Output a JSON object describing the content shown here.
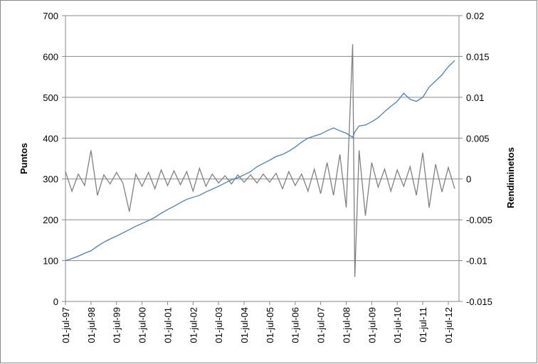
{
  "chart_data": {
    "type": "line",
    "x": [
      "1997-07-01",
      "1997-10-01",
      "1998-01-01",
      "1998-04-01",
      "1998-07-01",
      "1998-10-01",
      "1999-01-01",
      "1999-04-01",
      "1999-07-01",
      "1999-10-01",
      "2000-01-01",
      "2000-04-01",
      "2000-07-01",
      "2000-10-01",
      "2001-01-01",
      "2001-04-01",
      "2001-07-01",
      "2001-10-01",
      "2002-01-01",
      "2002-04-01",
      "2002-07-01",
      "2002-10-01",
      "2003-01-01",
      "2003-04-01",
      "2003-07-01",
      "2003-10-01",
      "2004-01-01",
      "2004-04-01",
      "2004-07-01",
      "2004-10-01",
      "2005-01-01",
      "2005-04-01",
      "2005-07-01",
      "2005-10-01",
      "2006-01-01",
      "2006-04-01",
      "2006-07-01",
      "2006-10-01",
      "2007-01-01",
      "2007-04-01",
      "2007-07-01",
      "2007-10-01",
      "2008-01-01",
      "2008-04-01",
      "2008-07-01",
      "2008-10-01",
      "2008-11-01",
      "2009-01-01",
      "2009-04-01",
      "2009-07-01",
      "2009-10-01",
      "2010-01-01",
      "2010-04-01",
      "2010-07-01",
      "2010-10-01",
      "2011-01-01",
      "2011-04-01",
      "2011-07-01",
      "2011-10-01",
      "2012-01-01",
      "2012-04-01",
      "2012-07-01",
      "2012-10-01"
    ],
    "series": [
      {
        "name": "Puntos",
        "color": "#4a7ebb",
        "axis": "y",
        "values": [
          100,
          105,
          111,
          118,
          124,
          135,
          145,
          153,
          160,
          168,
          176,
          184,
          191,
          198,
          206,
          216,
          225,
          233,
          242,
          250,
          255,
          260,
          268,
          275,
          282,
          290,
          298,
          303,
          310,
          318,
          330,
          338,
          346,
          355,
          360,
          368,
          378,
          390,
          400,
          405,
          410,
          418,
          425,
          418,
          412,
          402,
          415,
          430,
          432,
          440,
          450,
          465,
          478,
          490,
          510,
          495,
          490,
          500,
          525,
          540,
          555,
          575,
          590
        ]
      },
      {
        "name": "Rendiminetos",
        "color": "#808080",
        "axis": "y2",
        "values": [
          0.0009,
          -0.0015,
          0.0006,
          -0.0008,
          0.0035,
          -0.002,
          0.0005,
          -0.0006,
          0.0008,
          -0.0005,
          -0.004,
          0.0006,
          -0.0009,
          0.0008,
          -0.0012,
          0.0011,
          -0.0008,
          0.001,
          -0.0007,
          0.0009,
          -0.0015,
          0.0013,
          -0.0009,
          0.0006,
          -0.0005,
          0.0004,
          -0.0006,
          0.0005,
          -0.0004,
          0.0005,
          -0.0005,
          0.0006,
          -0.0004,
          0.0007,
          -0.0012,
          0.0009,
          -0.0008,
          0.0006,
          -0.0015,
          0.0012,
          -0.0018,
          0.002,
          -0.002,
          0.003,
          -0.0035,
          0.0165,
          -0.012,
          0.0035,
          -0.0045,
          0.002,
          -0.001,
          0.0012,
          -0.0015,
          0.0011,
          -0.0009,
          0.0015,
          -0.002,
          0.0032,
          -0.0035,
          0.0018,
          -0.0016,
          0.0014,
          -0.0012
        ]
      }
    ],
    "y_label": "Puntos",
    "y2_label": "Rendiminetos",
    "xlim": [
      "1997-07-01",
      "2012-12-01"
    ],
    "xticks": [
      {
        "value": "1997-07-01",
        "label": "01-jul-97"
      },
      {
        "value": "1998-07-01",
        "label": "01-jul-98"
      },
      {
        "value": "1999-07-01",
        "label": "01-jul-99"
      },
      {
        "value": "2000-07-01",
        "label": "01-jul-00"
      },
      {
        "value": "2001-07-01",
        "label": "01-jul-01"
      },
      {
        "value": "2002-07-01",
        "label": "01-jul-02"
      },
      {
        "value": "2003-07-01",
        "label": "01-jul-03"
      },
      {
        "value": "2004-07-01",
        "label": "01-jul-04"
      },
      {
        "value": "2005-07-01",
        "label": "01-jul-05"
      },
      {
        "value": "2006-07-01",
        "label": "01-jul-06"
      },
      {
        "value": "2007-07-01",
        "label": "01-jul-07"
      },
      {
        "value": "2008-07-01",
        "label": "01-jul-08"
      },
      {
        "value": "2009-07-01",
        "label": "01-jul-09"
      },
      {
        "value": "2010-07-01",
        "label": "01-jul-10"
      },
      {
        "value": "2011-07-01",
        "label": "01-jul-11"
      },
      {
        "value": "2012-07-01",
        "label": "01-jul-12"
      }
    ],
    "ylim": [
      0,
      700
    ],
    "yticks": [
      0,
      100,
      200,
      300,
      400,
      500,
      600,
      700
    ],
    "y2lim": [
      -0.015,
      0.02
    ],
    "y2ticks": [
      -0.015,
      -0.01,
      -0.005,
      0,
      0.005,
      0.01,
      0.015,
      0.02
    ],
    "grid": true
  }
}
